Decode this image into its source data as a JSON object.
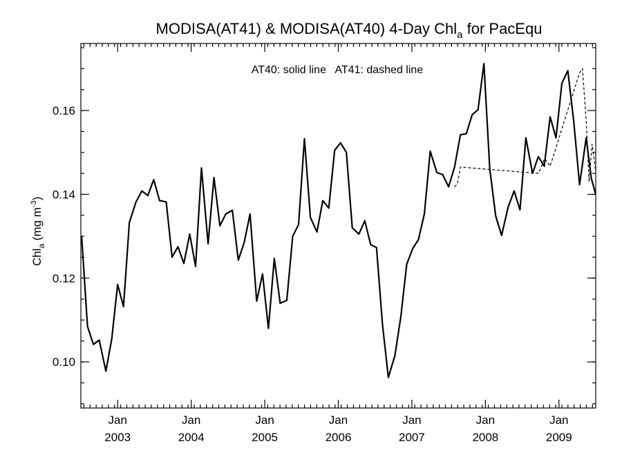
{
  "chart_data": {
    "type": "line",
    "title": "MODISA(AT41) & MODISA(AT40) 4-Day Chl",
    "title_subscript": "a",
    "title_suffix": " for PacEqu",
    "ylabel": "Chl",
    "ylabel_subscript": "a",
    "ylabel_units": " (mg m",
    "ylabel_units_superscript": "-3",
    "ylabel_close": ")",
    "legend_text": "AT40: solid line   AT41: dashed line",
    "xlim": [
      2002.5,
      2009.5
    ],
    "ylim": [
      0.089,
      0.176
    ],
    "y_ticks": [
      0.1,
      0.12,
      0.14,
      0.16
    ],
    "y_tick_labels": [
      "0.10",
      "0.12",
      "0.14",
      "0.16"
    ],
    "y_minor_step": 0.005,
    "x_ticks": [
      2003,
      2004,
      2005,
      2006,
      2007,
      2008,
      2009
    ],
    "x_tick_labels": [
      [
        "Jan",
        "2003"
      ],
      [
        "Jan",
        "2004"
      ],
      [
        "Jan",
        "2005"
      ],
      [
        "Jan",
        "2006"
      ],
      [
        "Jan",
        "2007"
      ],
      [
        "Jan",
        "2008"
      ],
      [
        "Jan",
        "2009"
      ]
    ],
    "x_minor_step": 0.0833,
    "grid": false,
    "series": [
      {
        "name": "AT40",
        "style": "solid",
        "x": [
          2002.51,
          2002.59,
          2002.67,
          2002.75,
          2002.84,
          2002.92,
          2003.0,
          2003.08,
          2003.16,
          2003.25,
          2003.33,
          2003.41,
          2003.49,
          2003.57,
          2003.66,
          2003.74,
          2003.82,
          2003.9,
          2003.98,
          2004.06,
          2004.14,
          2004.23,
          2004.31,
          2004.39,
          2004.47,
          2004.56,
          2004.64,
          2004.72,
          2004.8,
          2004.89,
          2004.97,
          2005.05,
          2005.13,
          2005.21,
          2005.3,
          2005.38,
          2005.46,
          2005.54,
          2005.62,
          2005.71,
          2005.79,
          2005.87,
          2005.95,
          2006.03,
          2006.11,
          2006.19,
          2006.28,
          2006.36,
          2006.44,
          2006.52,
          2006.6,
          2006.68,
          2006.77,
          2006.85,
          2006.93,
          2007.01,
          2007.09,
          2007.17,
          2007.25,
          2007.34,
          2007.42,
          2007.5,
          2007.58,
          2007.66,
          2007.74,
          2007.82,
          2007.9,
          2007.98,
          2008.06,
          2008.14,
          2008.22,
          2008.31,
          2008.39,
          2008.47,
          2008.55,
          2008.64,
          2008.72,
          2008.8,
          2008.88,
          2008.96,
          2009.04,
          2009.12,
          2009.2,
          2009.28,
          2009.37,
          2009.44,
          2009.5
        ],
        "values": [
          0.13,
          0.1085,
          0.1042,
          0.1052,
          0.0978,
          0.1055,
          0.1185,
          0.1132,
          0.1333,
          0.1382,
          0.1408,
          0.1397,
          0.1435,
          0.1385,
          0.1382,
          0.125,
          0.1275,
          0.1235,
          0.1305,
          0.1228,
          0.1463,
          0.1282,
          0.144,
          0.1325,
          0.1353,
          0.1362,
          0.1243,
          0.1285,
          0.1353,
          0.1145,
          0.121,
          0.108,
          0.1247,
          0.114,
          0.1147,
          0.13,
          0.1328,
          0.1533,
          0.1345,
          0.131,
          0.1385,
          0.1367,
          0.1505,
          0.1523,
          0.15,
          0.132,
          0.1305,
          0.1337,
          0.128,
          0.1273,
          0.109,
          0.0963,
          0.1015,
          0.1108,
          0.1233,
          0.127,
          0.1292,
          0.1353,
          0.1503,
          0.1452,
          0.1447,
          0.1418,
          0.1465,
          0.1542,
          0.1545,
          0.159,
          0.1602,
          0.1712,
          0.146,
          0.1348,
          0.1302,
          0.137,
          0.1408,
          0.1363,
          0.1535,
          0.145,
          0.149,
          0.1467,
          0.1585,
          0.1535,
          0.1665,
          0.1695,
          0.1575,
          0.1423,
          0.1535,
          0.1438,
          0.14
        ]
      },
      {
        "name": "AT41",
        "style": "dashed",
        "x": [
          2007.58,
          2007.62,
          2007.66,
          2008.72,
          2008.76,
          2008.8,
          2008.84,
          2008.88,
          2009.28,
          2009.32,
          2009.37,
          2009.41,
          2009.45,
          2009.5
        ],
        "values": [
          0.1418,
          0.1425,
          0.1465,
          0.145,
          0.1465,
          0.1485,
          0.1478,
          0.1467,
          0.169,
          0.17,
          0.1575,
          0.143,
          0.152,
          0.1455
        ]
      }
    ]
  }
}
